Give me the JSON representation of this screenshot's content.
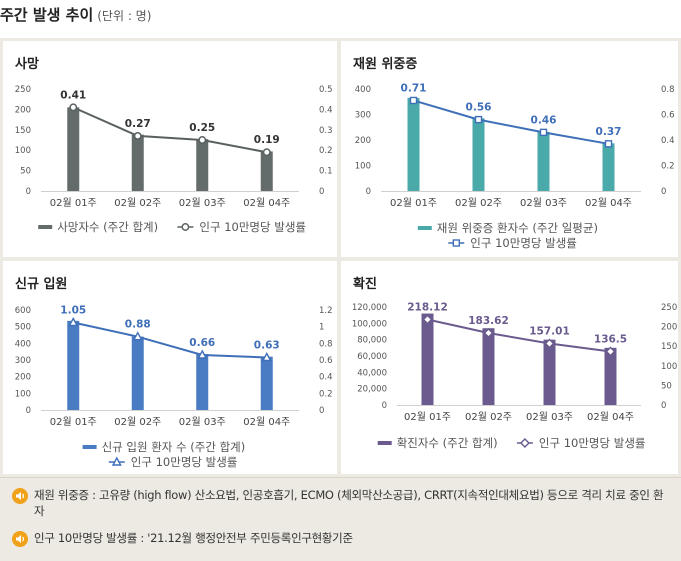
{
  "header": {
    "title": "주간 발생 추이",
    "unit": "(단위 : 명)"
  },
  "colors": {
    "death": "#636b6b",
    "icu": "#4aa9a9",
    "hosp": "#4a7cc4",
    "conf": "#6b5a8e",
    "rate_line_dark": "#5a6060",
    "rate_line_blue": "#3f6fb8",
    "axis_text": "#555555",
    "label_text": "#333333",
    "note_icon": "#f0a21a"
  },
  "chart_data": [
    {
      "id": "death",
      "title": "사망",
      "type": "bar+line",
      "categories": [
        "02월 01주",
        "02월 02주",
        "02월 03주",
        "02월 04주"
      ],
      "bar_series": {
        "name": "사망자수 (주간 합계)",
        "values": [
          205,
          138,
          127,
          97
        ]
      },
      "line_series": {
        "name": "인구 10만명당 발생률",
        "values": [
          0.41,
          0.27,
          0.25,
          0.19
        ],
        "labels": [
          "0.41",
          "0.27",
          "0.25",
          "0.19"
        ]
      },
      "ylim_left": [
        0,
        250
      ],
      "yticks_left": [
        "0",
        "50",
        "100",
        "150",
        "200",
        "250"
      ],
      "ylim_right": [
        0,
        0.5
      ],
      "yticks_right": [
        "0",
        "0.1",
        "0.2",
        "0.3",
        "0.4",
        "0.5"
      ],
      "legend_layout": "one-row"
    },
    {
      "id": "icu",
      "title": "재원 위중증",
      "type": "bar+line",
      "categories": [
        "02월 01주",
        "02월 02주",
        "02월 03주",
        "02월 04주"
      ],
      "bar_series": {
        "name": "재원 위중증 환자수 (주간 일평균)",
        "values": [
          365,
          285,
          232,
          187
        ]
      },
      "line_series": {
        "name": "인구 10만명당 발생률",
        "values": [
          0.71,
          0.56,
          0.46,
          0.37
        ],
        "labels": [
          "0.71",
          "0.56",
          "0.46",
          "0.37"
        ]
      },
      "ylim_left": [
        0,
        400
      ],
      "yticks_left": [
        "0",
        "100",
        "200",
        "300",
        "400"
      ],
      "ylim_right": [
        0,
        0.8
      ],
      "yticks_right": [
        "0",
        "0.2",
        "0.4",
        "0.6",
        "0.8"
      ],
      "legend_layout": "two-row"
    },
    {
      "id": "hosp",
      "title": "신규 입원",
      "type": "bar+line",
      "categories": [
        "02월 01주",
        "02월 02주",
        "02월 03주",
        "02월 04주"
      ],
      "bar_series": {
        "name": "신규 입원 환자 수 (주간 합계)",
        "values": [
          535,
          440,
          335,
          320
        ]
      },
      "line_series": {
        "name": "인구 10만명당 발생률",
        "values": [
          1.05,
          0.88,
          0.66,
          0.63
        ],
        "labels": [
          "1.05",
          "0.88",
          "0.66",
          "0.63"
        ]
      },
      "ylim_left": [
        0,
        600
      ],
      "yticks_left": [
        "0",
        "100",
        "200",
        "300",
        "400",
        "500",
        "600"
      ],
      "ylim_right": [
        0,
        1.2
      ],
      "yticks_right": [
        "0",
        "0.2",
        "0.4",
        "0.6",
        "0.8",
        "1",
        "1.2"
      ],
      "legend_layout": "two-row"
    },
    {
      "id": "conf",
      "title": "확진",
      "type": "bar+line",
      "categories": [
        "02월 01주",
        "02월 02주",
        "02월 03주",
        "02월 04주"
      ],
      "bar_series": {
        "name": "확진자수 (주간 합계)",
        "values": [
          112000,
          94000,
          80000,
          70000
        ]
      },
      "line_series": {
        "name": "인구 10만명당 발생률",
        "values": [
          218.12,
          183.62,
          157.01,
          136.5
        ],
        "labels": [
          "218.12",
          "183.62",
          "157.01",
          "136.5"
        ]
      },
      "ylim_left": [
        0,
        120000
      ],
      "yticks_left": [
        "0",
        "20,000",
        "40,000",
        "60,000",
        "80,000",
        "100,000",
        "120,000"
      ],
      "ylim_right": [
        0,
        250
      ],
      "yticks_right": [
        "0",
        "50",
        "100",
        "150",
        "200",
        "250"
      ],
      "legend_layout": "one-row"
    }
  ],
  "notes": [
    {
      "icon": "speaker-icon",
      "text": "재원 위중증 : 고유량 (high flow) 산소요법, 인공호흡기, ECMO (체외막산소공급), CRRT(지속적인대체요법) 등으로 격리 치료 중인 환자"
    },
    {
      "icon": "speaker-icon",
      "text": "인구 10만명당 발생률 : '21.12월 행정안전부 주민등록인구현황기준"
    }
  ]
}
